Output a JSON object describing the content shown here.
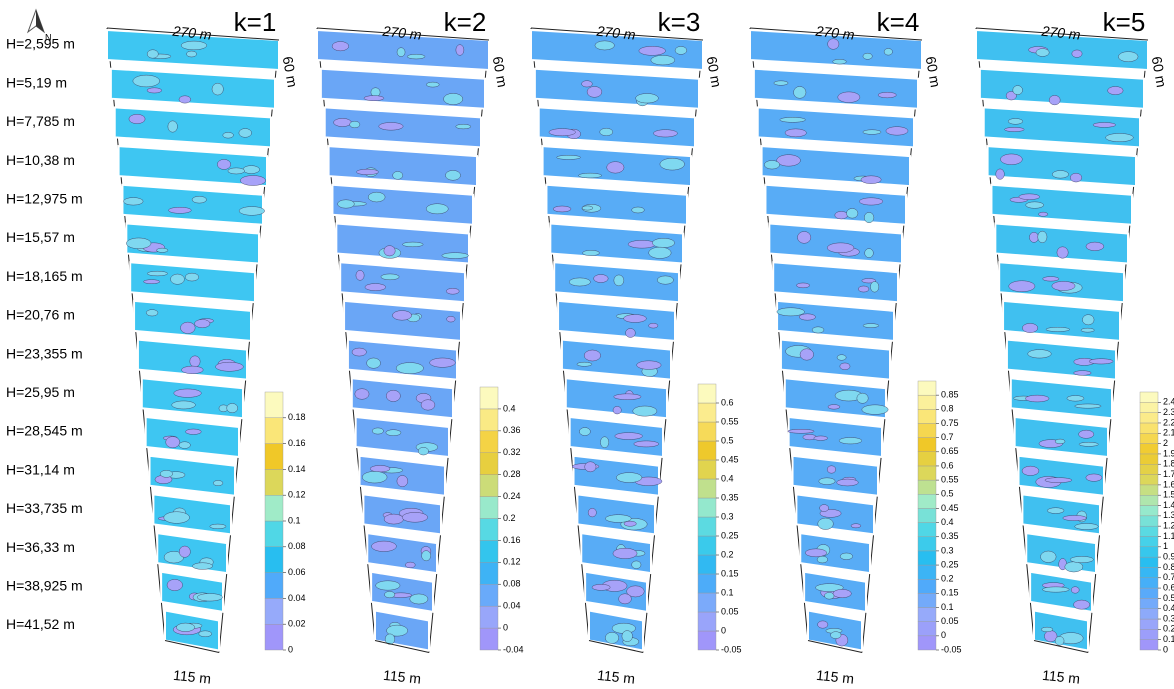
{
  "north": "N",
  "heights": [
    "H=2,595 m",
    "H=5,19 m",
    "H=7,785 m",
    "H=10,38 m",
    "H=12,975 m",
    "H=15,57 m",
    "H=18,165 m",
    "H=20,76 m",
    "H=23,355 m",
    "H=25,95 m",
    "H=28,545 m",
    "H=31,14 m",
    "H=33,735 m",
    "H=36,33 m",
    "H=38,925 m",
    "H=41,52 m"
  ],
  "panels": [
    {
      "title": "k=1",
      "top": "270 m",
      "side": "60 m",
      "bottom": "115 m",
      "color": "#3ec6f2",
      "colorbar": {
        "lim": [
          0,
          0.2
        ],
        "ticks": [
          0,
          0.02,
          0.04,
          0.06,
          0.08,
          0.1,
          0.12,
          0.14,
          0.16,
          0.18
        ]
      }
    },
    {
      "title": "k=2",
      "top": "270 m",
      "side": "60 m",
      "bottom": "115 m",
      "color": "#6aa6f6",
      "colorbar": {
        "lim": [
          -0.04,
          0.44
        ],
        "ticks": [
          -0.04,
          0,
          0.04,
          0.08,
          0.12,
          0.16,
          0.2,
          0.24,
          0.28,
          0.32,
          0.36,
          0.4
        ]
      }
    },
    {
      "title": "k=3",
      "top": "270 m",
      "side": "60 m",
      "bottom": "115 m",
      "color": "#58acf6",
      "colorbar": {
        "lim": [
          -0.05,
          0.65
        ],
        "ticks": [
          -0.05,
          0,
          0.05,
          0.1,
          0.15,
          0.2,
          0.25,
          0.3,
          0.35,
          0.4,
          0.45,
          0.5,
          0.55,
          0.6
        ]
      }
    },
    {
      "title": "k=4",
      "top": "270 m",
      "side": "60 m",
      "bottom": "115 m",
      "color": "#58acf6",
      "colorbar": {
        "lim": [
          -0.05,
          0.9
        ],
        "ticks": [
          -0.05,
          0,
          0.05,
          0.1,
          0.15,
          0.2,
          0.25,
          0.3,
          0.35,
          0.4,
          0.45,
          0.5,
          0.55,
          0.6,
          0.65,
          0.7,
          0.75,
          0.8,
          0.85
        ]
      }
    },
    {
      "title": "k=5",
      "top": "270 m",
      "side": "60 m",
      "bottom": "115 m",
      "color": "#40c0f0",
      "colorbar": {
        "lim": [
          0,
          2.5
        ],
        "ticks": [
          0,
          0.1,
          0.2,
          0.3,
          0.4,
          0.5,
          0.6,
          0.7,
          0.8,
          0.9,
          1,
          1.1,
          1.2,
          1.3,
          1.4,
          1.5,
          1.6,
          1.7,
          1.8,
          1.9,
          2,
          2.1,
          2.2,
          2.3,
          2.4
        ]
      }
    }
  ]
}
